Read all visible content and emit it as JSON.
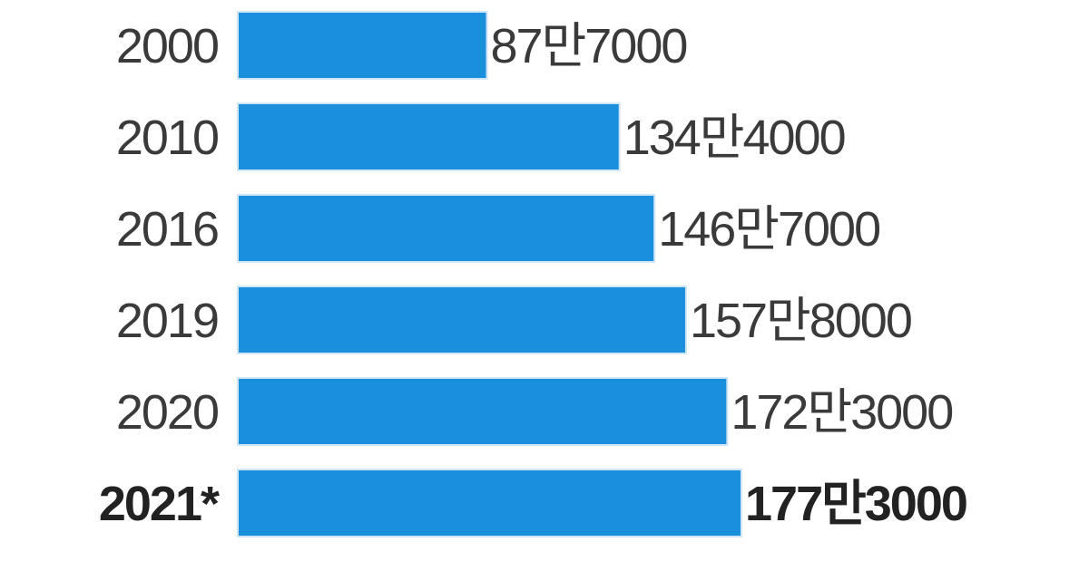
{
  "chart_data": {
    "type": "bar",
    "orientation": "horizontal",
    "categories": [
      "2000",
      "2010",
      "2016",
      "2019",
      "2020",
      "2021*"
    ],
    "values": [
      877000,
      1344000,
      1467000,
      1578000,
      1723000,
      1773000
    ],
    "value_labels": [
      "87만7000",
      "134만4000",
      "146만7000",
      "157만8000",
      "172만3000",
      "177만3000"
    ],
    "highlight_index": 5,
    "bar_color": "#1a8fdc",
    "bar_border_color": "#cfe6f6",
    "xlim": [
      0,
      1773000
    ],
    "grid": false,
    "legend": "none"
  }
}
